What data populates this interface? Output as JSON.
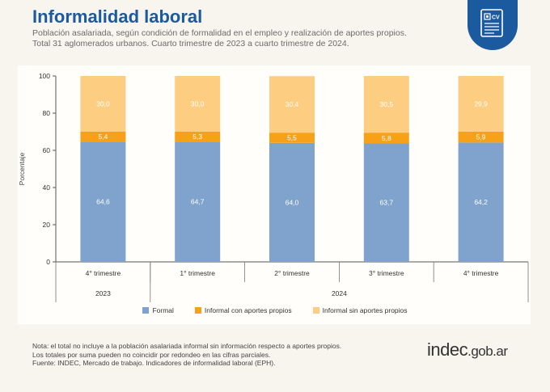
{
  "header": {
    "title": "Informalidad laboral",
    "subtitle_1": "Población asalariada, según condición de formalidad en el empleo y realización de aportes propios.",
    "subtitle_2": "Total 31 aglomerados urbanos. Cuarto trimestre de 2023 a cuarto trimestre de 2024."
  },
  "badge": {
    "icon": "cv-document-icon",
    "label": "CV"
  },
  "colors": {
    "formal": "#7fa3cc",
    "informal_con": "#f7a118",
    "informal_sin": "#fdcd82",
    "title": "#1b5a9e"
  },
  "chart_data": {
    "type": "bar",
    "stacked": true,
    "categories": [
      "4° trimestre",
      "1° trimestre",
      "2° trimestre",
      "3° trimestre",
      "4° trimestre"
    ],
    "year_groups": [
      {
        "label": "2023",
        "span": [
          0,
          0
        ]
      },
      {
        "label": "2024",
        "span": [
          1,
          4
        ]
      }
    ],
    "series": [
      {
        "name": "Formal",
        "values": [
          64.6,
          64.7,
          64.0,
          63.7,
          64.2
        ],
        "labels": [
          "64,6",
          "64,7",
          "64,0",
          "63,7",
          "64,2"
        ]
      },
      {
        "name": "Informal con aportes propios",
        "values": [
          5.4,
          5.3,
          5.5,
          5.8,
          5.9
        ],
        "labels": [
          "5,4",
          "5,3",
          "5,5",
          "5,8",
          "5,9"
        ]
      },
      {
        "name": "Informal sin aportes propios",
        "values": [
          30.0,
          30.0,
          30.4,
          30.5,
          29.9
        ],
        "labels": [
          "30,0",
          "30,0",
          "30,4",
          "30,5",
          "29,9"
        ]
      }
    ],
    "ylabel": "Porcentaje",
    "ylim": [
      0,
      100
    ],
    "yticks": [
      0,
      20,
      40,
      60,
      80,
      100
    ],
    "grid": false,
    "legend_position": "bottom"
  },
  "notes": [
    "Nota: el total no incluye a la población asalariada informal sin información respecto a aportes propios.",
    "Los totales por suma pueden no coincidir por redondeo en las cifras parciales.",
    "Fuente: INDEC, Mercado de trabajo. Indicadores de informalidad laboral (EPH)."
  ],
  "brand": {
    "main": "indec",
    "suffix": ".gob.ar"
  }
}
